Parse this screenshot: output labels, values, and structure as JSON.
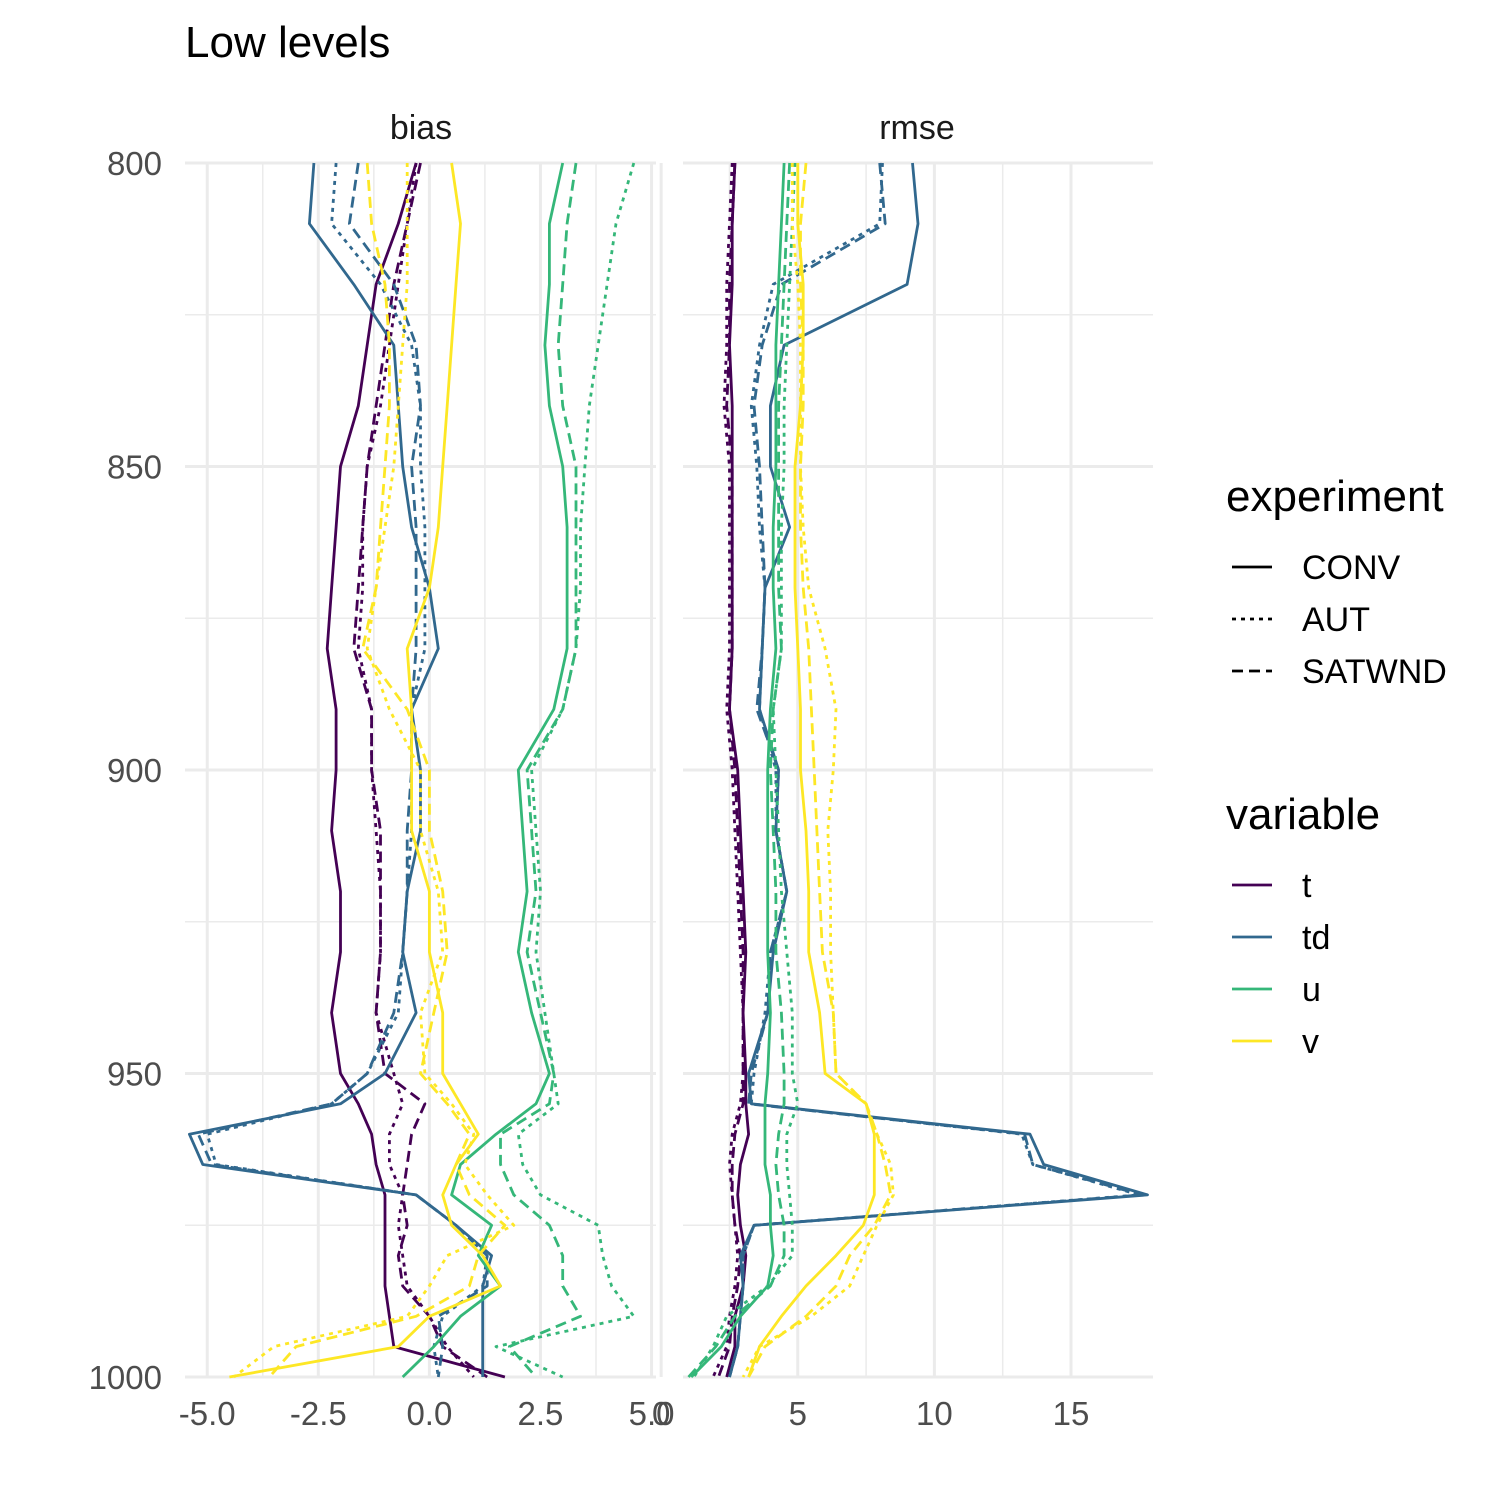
{
  "chart_data": {
    "type": "line",
    "title": "Low levels",
    "orientation": "vertical profile (y axis reversed)",
    "panels": [
      "bias",
      "rmse"
    ],
    "y": [
      800,
      810,
      820,
      830,
      840,
      850,
      860,
      870,
      880,
      890,
      900,
      910,
      920,
      930,
      940,
      950,
      955,
      960,
      965,
      970,
      975,
      980,
      985,
      990,
      995,
      1000
    ],
    "ylim": [
      1000,
      800
    ],
    "yticks": [
      "800",
      "850",
      "900",
      "950",
      "1000"
    ],
    "xlim": {
      "bias": [
        -5.5,
        5.1
      ],
      "rmse": [
        0.8,
        18.0
      ]
    },
    "xticks": {
      "bias": [
        "-5.0",
        "-2.5",
        "0.0",
        "2.5",
        "5.0"
      ],
      "rmse": [
        "0",
        "5",
        "10",
        "15"
      ]
    },
    "grid": true,
    "colors": {
      "t": "#440154",
      "td": "#31688e",
      "u": "#35b779",
      "v": "#fde725",
      "grid": "#ebebeb"
    },
    "legend": {
      "position": "right",
      "experiment": {
        "title": "experiment",
        "entries": [
          "CONV",
          "AUT",
          "SATWND"
        ]
      },
      "variable": {
        "title": "variable",
        "entries": [
          "t",
          "td",
          "u",
          "v"
        ]
      }
    },
    "series": [
      {
        "panel": "bias",
        "variable": "t",
        "experiment": "CONV",
        "values": [
          -0.3,
          -0.7,
          -1.2,
          -1.4,
          -1.6,
          -2.0,
          -2.1,
          -2.2,
          -2.3,
          -2.1,
          -2.1,
          -2.2,
          -2.0,
          -2.0,
          -2.2,
          -2.0,
          -1.6,
          -1.3,
          -1.2,
          -1.0,
          -1.0,
          -1.0,
          -1.0,
          -0.9,
          -0.8,
          1.7
        ]
      },
      {
        "panel": "bias",
        "variable": "t",
        "experiment": "AUT",
        "values": [
          -0.3,
          -0.5,
          -0.7,
          -0.9,
          -1.1,
          -1.4,
          -1.5,
          -1.5,
          -1.6,
          -1.3,
          -1.3,
          -1.2,
          -1.1,
          -1.1,
          -1.2,
          -0.8,
          -0.6,
          -0.9,
          -0.9,
          -0.6,
          -0.7,
          -0.6,
          -0.5,
          0.0,
          0.4,
          1.0
        ]
      },
      {
        "panel": "bias",
        "variable": "t",
        "experiment": "SATWND",
        "values": [
          -0.2,
          -0.5,
          -0.8,
          -1.0,
          -1.2,
          -1.4,
          -1.5,
          -1.6,
          -1.7,
          -1.3,
          -1.3,
          -1.1,
          -1.1,
          -1.1,
          -1.2,
          -1.0,
          -0.1,
          -0.4,
          -0.5,
          -0.6,
          -0.5,
          -0.7,
          -0.6,
          0.0,
          0.3,
          1.3
        ]
      },
      {
        "panel": "bias",
        "variable": "td",
        "experiment": "CONV",
        "values": [
          -2.6,
          -2.7,
          -1.7,
          -0.8,
          -0.7,
          -0.6,
          -0.4,
          0.0,
          0.2,
          -0.4,
          -0.2,
          -0.2,
          -0.5,
          -0.6,
          -0.3,
          -1.0,
          -2.0,
          -5.4,
          -5.1,
          -0.3,
          0.6,
          1.4,
          1.2,
          1.2,
          1.2,
          1.2
        ]
      },
      {
        "panel": "bias",
        "variable": "td",
        "experiment": "AUT",
        "values": [
          -2.1,
          -2.2,
          -1.1,
          -0.4,
          -0.2,
          -0.2,
          -0.1,
          -0.1,
          -0.1,
          -0.4,
          -0.4,
          -0.4,
          -0.5,
          -0.6,
          -0.7,
          -1.4,
          -2.2,
          -5.0,
          -4.8,
          -0.3,
          0.6,
          1.3,
          1.2,
          0.3,
          0.1,
          0.2
        ]
      },
      {
        "panel": "bias",
        "variable": "td",
        "experiment": "SATWND",
        "values": [
          -1.6,
          -1.8,
          -0.8,
          -0.3,
          -0.2,
          -0.4,
          -0.3,
          -0.3,
          -0.3,
          -0.4,
          -0.4,
          -0.5,
          -0.5,
          -0.6,
          -0.8,
          -1.4,
          -2.2,
          -5.2,
          -4.9,
          -0.3,
          0.6,
          1.3,
          1.3,
          0.2,
          0.3,
          0.2
        ]
      },
      {
        "panel": "bias",
        "variable": "u",
        "experiment": "CONV",
        "values": [
          3.0,
          2.7,
          2.7,
          2.6,
          2.7,
          3.0,
          3.1,
          3.1,
          3.1,
          2.8,
          2.0,
          2.1,
          2.2,
          2.0,
          2.3,
          2.7,
          2.4,
          1.5,
          0.7,
          0.5,
          1.4,
          1.1,
          1.6,
          0.7,
          0.1,
          -0.6
        ]
      },
      {
        "panel": "bias",
        "variable": "u",
        "experiment": "AUT",
        "values": [
          4.6,
          4.2,
          4.0,
          3.8,
          3.6,
          3.5,
          3.4,
          3.4,
          3.3,
          3.0,
          2.3,
          2.4,
          2.5,
          2.4,
          2.6,
          2.8,
          2.9,
          2.0,
          2.1,
          2.5,
          3.8,
          3.9,
          4.1,
          4.6,
          1.5,
          3.0
        ]
      },
      {
        "panel": "bias",
        "variable": "u",
        "experiment": "SATWND",
        "values": [
          3.3,
          3.1,
          3.0,
          2.9,
          3.0,
          3.3,
          3.3,
          3.3,
          3.3,
          3.0,
          2.2,
          2.3,
          2.4,
          2.2,
          2.5,
          2.8,
          2.7,
          1.6,
          1.6,
          1.9,
          2.7,
          3.0,
          3.0,
          3.4,
          1.8,
          2.4
        ]
      },
      {
        "panel": "bias",
        "variable": "v",
        "experiment": "CONV",
        "values": [
          0.5,
          0.7,
          0.6,
          0.5,
          0.4,
          0.3,
          0.2,
          0.0,
          -0.5,
          -0.4,
          -0.4,
          -0.4,
          0.0,
          0.0,
          0.3,
          0.3,
          0.7,
          1.1,
          0.6,
          0.3,
          0.5,
          1.2,
          1.6,
          0.0,
          -0.7,
          -4.5
        ]
      },
      {
        "panel": "bias",
        "variable": "v",
        "experiment": "AUT",
        "values": [
          -0.5,
          -0.5,
          -0.5,
          -0.6,
          -0.7,
          -0.8,
          -1.0,
          -1.2,
          -1.4,
          -0.9,
          -0.2,
          -0.2,
          0.2,
          0.3,
          -0.2,
          -0.1,
          0.5,
          1.0,
          0.8,
          1.3,
          1.9,
          0.4,
          0.0,
          -0.5,
          -3.5,
          -4.4
        ]
      },
      {
        "panel": "bias",
        "variable": "v",
        "experiment": "SATWND",
        "values": [
          -1.4,
          -1.3,
          -1.0,
          -0.9,
          -0.9,
          -1.0,
          -1.1,
          -1.2,
          -1.5,
          -0.5,
          0.0,
          0.0,
          0.3,
          0.4,
          0.1,
          -0.2,
          0.4,
          0.9,
          0.6,
          0.9,
          1.7,
          1.1,
          0.9,
          -0.3,
          -3.0,
          -3.6
        ]
      },
      {
        "panel": "rmse",
        "variable": "t",
        "experiment": "CONV",
        "values": [
          2.7,
          2.6,
          2.6,
          2.5,
          2.6,
          2.6,
          2.6,
          2.6,
          2.6,
          2.5,
          2.8,
          2.9,
          3.0,
          3.1,
          3.0,
          3.1,
          3.1,
          3.2,
          2.9,
          2.8,
          2.9,
          3.1,
          3.0,
          2.7,
          2.7,
          2.4
        ]
      },
      {
        "panel": "rmse",
        "variable": "t",
        "experiment": "AUT",
        "values": [
          2.6,
          2.5,
          2.4,
          2.4,
          2.3,
          2.5,
          2.5,
          2.5,
          2.5,
          2.4,
          2.6,
          2.7,
          2.8,
          2.9,
          3.0,
          3.0,
          2.9,
          2.6,
          2.5,
          2.6,
          2.7,
          2.8,
          2.7,
          2.5,
          2.4,
          1.9
        ]
      },
      {
        "panel": "rmse",
        "variable": "t",
        "experiment": "SATWND",
        "values": [
          2.7,
          2.6,
          2.5,
          2.5,
          2.4,
          2.6,
          2.6,
          2.6,
          2.6,
          2.5,
          2.7,
          2.8,
          2.9,
          3.0,
          3.0,
          3.0,
          3.0,
          2.7,
          2.6,
          2.6,
          2.7,
          2.9,
          2.8,
          2.6,
          2.5,
          2.1
        ]
      },
      {
        "panel": "rmse",
        "variable": "td",
        "experiment": "CONV",
        "values": [
          9.2,
          9.4,
          9.0,
          4.5,
          4.0,
          4.0,
          4.7,
          3.8,
          3.7,
          3.6,
          4.3,
          4.2,
          4.6,
          4.1,
          3.9,
          3.2,
          3.3,
          13.5,
          14.0,
          17.8,
          3.4,
          2.9,
          3.0,
          2.9,
          2.8,
          2.5
        ]
      },
      {
        "panel": "rmse",
        "variable": "td",
        "experiment": "AUT",
        "values": [
          8.1,
          8.0,
          4.1,
          3.6,
          3.3,
          3.5,
          3.6,
          3.8,
          3.7,
          3.6,
          4.2,
          4.2,
          4.6,
          4.0,
          3.8,
          3.4,
          3.3,
          13.2,
          13.6,
          17.5,
          3.4,
          3.0,
          3.0,
          2.9,
          2.8,
          2.5
        ]
      },
      {
        "panel": "rmse",
        "variable": "td",
        "experiment": "SATWND",
        "values": [
          8.0,
          8.2,
          4.4,
          3.7,
          3.4,
          3.6,
          3.7,
          3.8,
          3.7,
          3.5,
          4.3,
          4.2,
          4.6,
          4.0,
          3.9,
          3.3,
          3.2,
          13.3,
          13.6,
          17.6,
          3.4,
          3.0,
          3.0,
          2.9,
          2.8,
          2.5
        ]
      },
      {
        "panel": "rmse",
        "variable": "u",
        "experiment": "CONV",
        "values": [
          4.5,
          4.4,
          4.3,
          4.2,
          4.2,
          4.2,
          4.1,
          4.1,
          4.2,
          4.0,
          3.9,
          3.9,
          3.9,
          3.9,
          4.0,
          3.9,
          3.8,
          3.8,
          3.8,
          4.0,
          4.0,
          4.1,
          3.9,
          2.9,
          2.2,
          1.1
        ]
      },
      {
        "panel": "rmse",
        "variable": "u",
        "experiment": "AUT",
        "values": [
          4.9,
          4.8,
          4.7,
          4.6,
          4.5,
          4.5,
          4.4,
          4.4,
          4.4,
          4.1,
          4.2,
          4.3,
          4.4,
          4.6,
          4.8,
          4.8,
          5.0,
          4.6,
          4.6,
          4.7,
          4.8,
          4.8,
          3.9,
          2.4,
          1.9,
          1.2
        ]
      },
      {
        "panel": "rmse",
        "variable": "u",
        "experiment": "SATWND",
        "values": [
          4.7,
          4.6,
          4.5,
          4.4,
          4.3,
          4.3,
          4.3,
          4.3,
          4.4,
          4.1,
          4.0,
          4.1,
          4.2,
          4.2,
          4.4,
          4.5,
          4.5,
          4.3,
          4.2,
          4.3,
          4.5,
          4.5,
          4.0,
          2.7,
          2.0,
          1.0
        ]
      },
      {
        "panel": "rmse",
        "variable": "v",
        "experiment": "CONV",
        "values": [
          5.0,
          5.0,
          5.2,
          5.2,
          5.1,
          4.9,
          4.9,
          4.9,
          5.0,
          5.1,
          5.1,
          5.3,
          5.4,
          5.4,
          5.8,
          6.0,
          7.5,
          7.8,
          7.8,
          7.8,
          7.4,
          6.4,
          5.3,
          4.4,
          3.6,
          3.2
        ]
      },
      {
        "panel": "rmse",
        "variable": "v",
        "experiment": "AUT",
        "values": [
          4.8,
          4.8,
          5.0,
          5.1,
          5.1,
          5.1,
          5.2,
          5.4,
          6.0,
          6.4,
          6.3,
          6.1,
          6.2,
          6.2,
          6.3,
          6.4,
          7.5,
          7.9,
          8.4,
          8.5,
          7.9,
          7.4,
          6.9,
          5.5,
          3.6,
          3.0
        ]
      },
      {
        "panel": "rmse",
        "variable": "v",
        "experiment": "SATWND",
        "values": [
          5.3,
          5.1,
          5.1,
          5.2,
          5.2,
          5.1,
          5.1,
          5.2,
          5.4,
          5.5,
          5.6,
          5.7,
          5.8,
          5.9,
          6.3,
          6.4,
          7.5,
          7.9,
          8.2,
          8.4,
          7.8,
          6.9,
          6.4,
          5.3,
          3.8,
          3.2
        ]
      }
    ]
  }
}
